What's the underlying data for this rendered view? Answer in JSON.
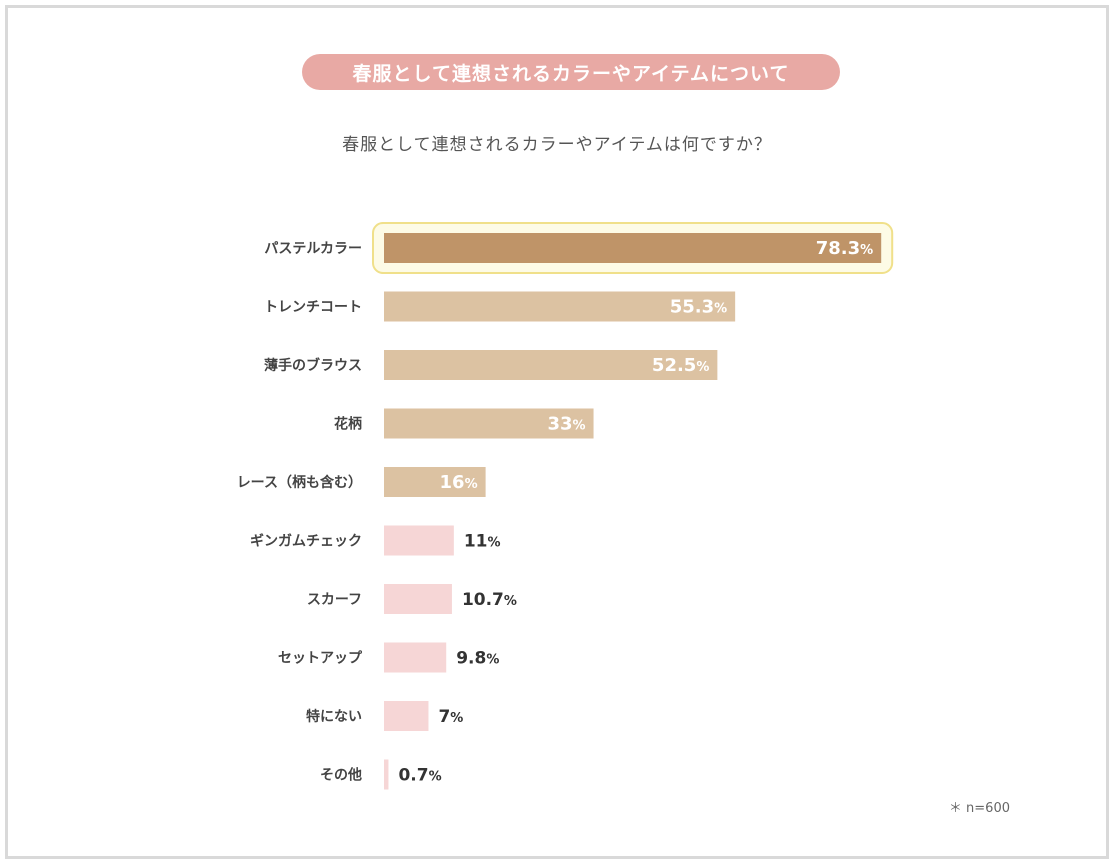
{
  "header": {
    "title": "春服として連想されるカラーやアイテムについて",
    "question": "春服として連想されるカラーやアイテムは何ですか？"
  },
  "footnote": "＊ n=600",
  "colors": {
    "title_pill": "#e8a9a4",
    "highlight_bar": "#bf9468",
    "highlight_border": "#f0e08a",
    "highlight_fill": "#fdfbe6",
    "strong_bar": "#dcc2a2",
    "light_bar": "#f6d6d6"
  },
  "chart_data": {
    "type": "bar",
    "orientation": "horizontal",
    "unit": "%",
    "categories": [
      "パステルカラー",
      "トレンチコート",
      "薄手のブラウス",
      "花柄",
      "レース（柄も含む）",
      "ギンガムチェック",
      "スカーフ",
      "セットアップ",
      "特にない",
      "その他"
    ],
    "values": [
      78.3,
      55.3,
      52.5,
      33,
      16,
      11,
      10.7,
      9.8,
      7,
      0.7
    ],
    "value_labels": [
      "78.3",
      "55.3",
      "52.5",
      "33",
      "16",
      "11",
      "10.7",
      "9.8",
      "7",
      "0.7"
    ],
    "highlight_index": 0,
    "xlim": [
      0,
      100
    ],
    "grid": false,
    "legend": "none"
  }
}
